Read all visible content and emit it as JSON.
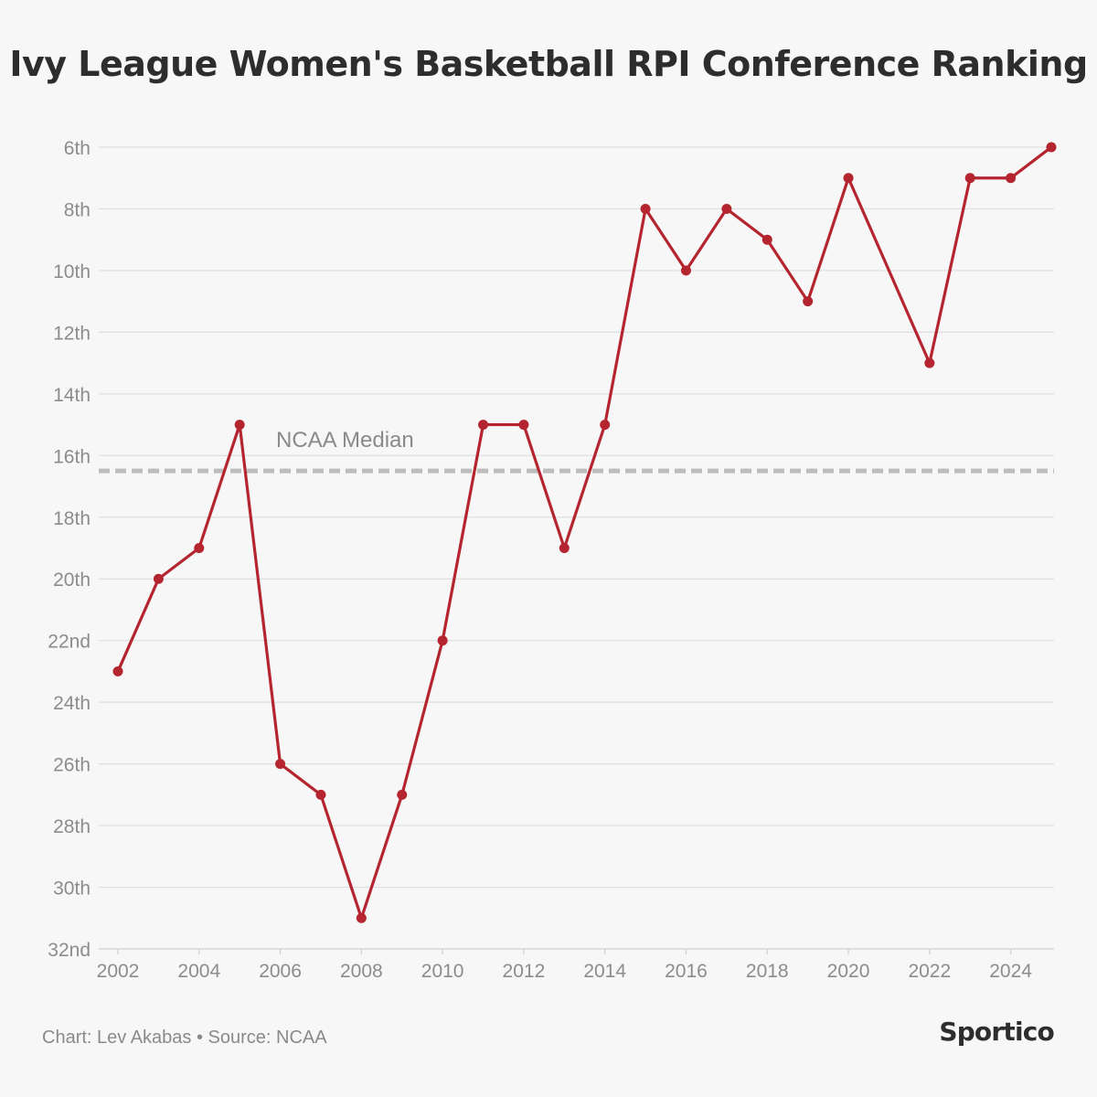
{
  "header": {
    "title": "Ivy League Women's Basketball RPI Conference Ranking"
  },
  "footer": {
    "credit": "Chart: Lev Akabas • Source: NCAA",
    "brand": "Sportico"
  },
  "chart_data": {
    "type": "line",
    "title": "Ivy League Women's Basketball RPI Conference Ranking",
    "xlabel": "",
    "ylabel": "",
    "y_inverted": true,
    "xlim": [
      2002,
      2025
    ],
    "ylim": [
      6,
      32
    ],
    "x_ticks": [
      {
        "value": 2002,
        "label": "2002"
      },
      {
        "value": 2004,
        "label": "2004"
      },
      {
        "value": 2006,
        "label": "2006"
      },
      {
        "value": 2008,
        "label": "2008"
      },
      {
        "value": 2010,
        "label": "2010"
      },
      {
        "value": 2012,
        "label": "2012"
      },
      {
        "value": 2014,
        "label": "2014"
      },
      {
        "value": 2016,
        "label": "2016"
      },
      {
        "value": 2018,
        "label": "2018"
      },
      {
        "value": 2020,
        "label": "2020"
      },
      {
        "value": 2022,
        "label": "2022"
      },
      {
        "value": 2024,
        "label": "2024"
      }
    ],
    "y_ticks": [
      {
        "value": 6,
        "label": "6th"
      },
      {
        "value": 8,
        "label": "8th"
      },
      {
        "value": 10,
        "label": "10th"
      },
      {
        "value": 12,
        "label": "12th"
      },
      {
        "value": 14,
        "label": "14th"
      },
      {
        "value": 16,
        "label": "16th"
      },
      {
        "value": 18,
        "label": "18th"
      },
      {
        "value": 20,
        "label": "20th"
      },
      {
        "value": 22,
        "label": "22nd"
      },
      {
        "value": 24,
        "label": "24th"
      },
      {
        "value": 26,
        "label": "26th"
      },
      {
        "value": 28,
        "label": "28th"
      },
      {
        "value": 30,
        "label": "30th"
      },
      {
        "value": 32,
        "label": "32nd"
      }
    ],
    "grid": true,
    "x": [
      2002,
      2003,
      2004,
      2005,
      2006,
      2007,
      2008,
      2009,
      2010,
      2011,
      2012,
      2013,
      2014,
      2015,
      2016,
      2017,
      2018,
      2019,
      2020,
      2022,
      2023,
      2024,
      2025
    ],
    "series": [
      {
        "values": [
          23,
          20,
          19,
          15,
          26,
          27,
          31,
          27,
          22,
          15,
          15,
          19,
          15,
          8,
          10,
          8,
          9,
          11,
          7,
          13,
          7,
          7,
          6
        ],
        "color": "#b5252f"
      }
    ],
    "reference_line": {
      "label": "NCAA Median",
      "value": 16.5,
      "color": "#bdbdbd",
      "style": "dashed"
    }
  }
}
